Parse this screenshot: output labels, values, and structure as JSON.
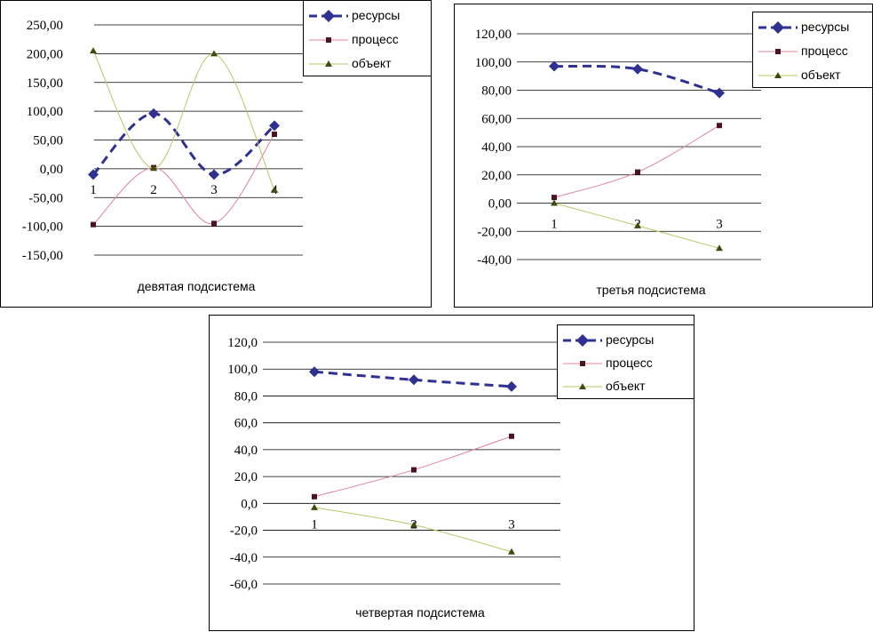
{
  "chart_data": [
    {
      "type": "line",
      "xlabel": "девятая подсистема",
      "categories": [
        "1",
        "2",
        "3",
        "4"
      ],
      "ylim": [
        -150,
        250
      ],
      "ytick_step": 50,
      "tick_labels": [
        "250,00",
        "200,00",
        "150,00",
        "100,00",
        "50,00",
        "0,00",
        "-50,00",
        "-100,00",
        "-150,00"
      ],
      "legend_position": "top-right",
      "series": [
        {
          "name": "ресурсы",
          "values": [
            -10,
            96,
            -10,
            75
          ],
          "color": "#2e3192",
          "marker": "diamond",
          "dash": true
        },
        {
          "name": "процесс",
          "values": [
            -97,
            2,
            -95,
            60
          ],
          "color": "#e0849a",
          "marker": "square",
          "dash": false
        },
        {
          "name": "объект",
          "values": [
            205,
            1,
            200,
            -37
          ],
          "color": "#bcc466",
          "marker": "triangle",
          "dash": false
        }
      ]
    },
    {
      "type": "line",
      "xlabel": "третья подсистема",
      "categories": [
        "1",
        "2",
        "3"
      ],
      "ylim": [
        -40,
        120
      ],
      "ytick_step": 20,
      "tick_labels": [
        "120,00",
        "100,00",
        "80,00",
        "60,00",
        "40,00",
        "20,00",
        "0,00",
        "-20,00",
        "-40,00"
      ],
      "legend_position": "top-right",
      "series": [
        {
          "name": "ресурсы",
          "values": [
            97,
            95,
            78
          ],
          "color": "#2e3192",
          "marker": "diamond",
          "dash": true
        },
        {
          "name": "процесс",
          "values": [
            4,
            22,
            55
          ],
          "color": "#e0849a",
          "marker": "square",
          "dash": false
        },
        {
          "name": "объект",
          "values": [
            0,
            -16,
            -32
          ],
          "color": "#bcc466",
          "marker": "triangle",
          "dash": false
        }
      ]
    },
    {
      "type": "line",
      "xlabel": "четвертая подсистема",
      "categories": [
        "1",
        "2",
        "3"
      ],
      "ylim": [
        -60,
        120
      ],
      "ytick_step": 20,
      "tick_labels": [
        "120,0",
        "100,0",
        "80,0",
        "60,0",
        "40,0",
        "20,0",
        "0,0",
        "-20,0",
        "-40,0",
        "-60,0"
      ],
      "legend_position": "top-right",
      "series": [
        {
          "name": "ресурсы",
          "values": [
            98,
            92,
            87
          ],
          "color": "#2e3192",
          "marker": "diamond",
          "dash": true
        },
        {
          "name": "процесс",
          "values": [
            5,
            25,
            50
          ],
          "color": "#e0849a",
          "marker": "square",
          "dash": false
        },
        {
          "name": "объект",
          "values": [
            -3,
            -16,
            -36
          ],
          "color": "#bcc466",
          "marker": "triangle",
          "dash": false
        }
      ]
    }
  ]
}
